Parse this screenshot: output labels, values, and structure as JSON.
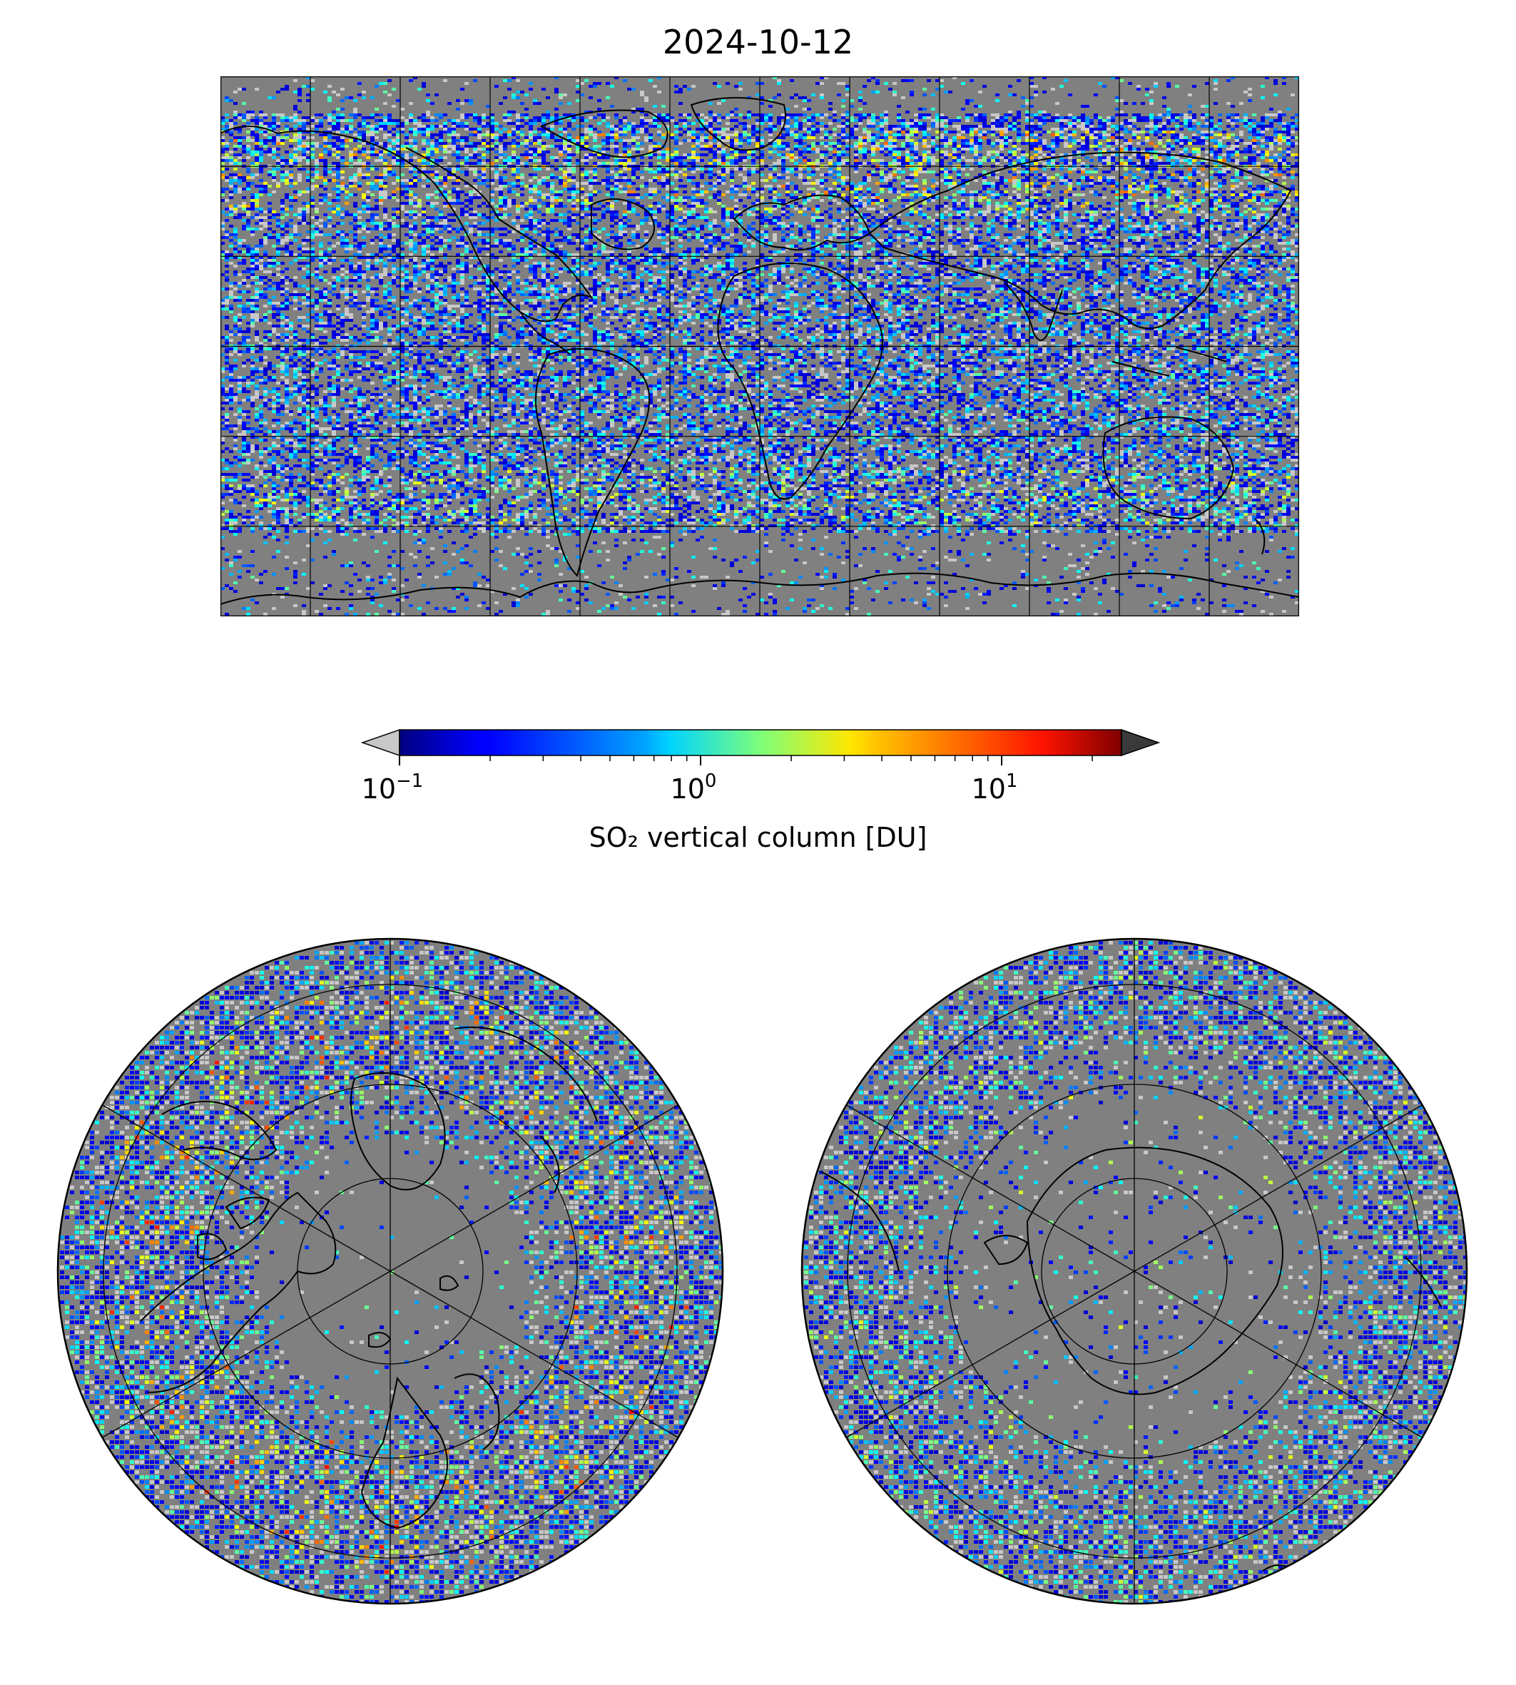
{
  "figure": {
    "title": "2024-10-12"
  },
  "colorbar": {
    "label": "SO₂ vertical column [DU]",
    "scale": "log",
    "colormap": "jet",
    "range": [
      0.1,
      25
    ],
    "extend": "both",
    "under_color": "#c8c8c8",
    "over_color": "#3a3a3a",
    "ticks": [
      {
        "value": 0.1,
        "base": "10",
        "exp": "−1"
      },
      {
        "value": 1,
        "base": "10",
        "exp": "0"
      },
      {
        "value": 10,
        "base": "10",
        "exp": "1"
      }
    ]
  },
  "maps": {
    "background_color": "#808080",
    "global": {
      "projection": "plate-carree",
      "lon_range": [
        -180,
        180
      ],
      "lat_range": [
        -90,
        90
      ],
      "gridlines": true
    },
    "north": {
      "projection": "north-polar-stereographic",
      "gridlines": true
    },
    "south": {
      "projection": "south-polar-stereographic",
      "gridlines": true
    }
  }
}
